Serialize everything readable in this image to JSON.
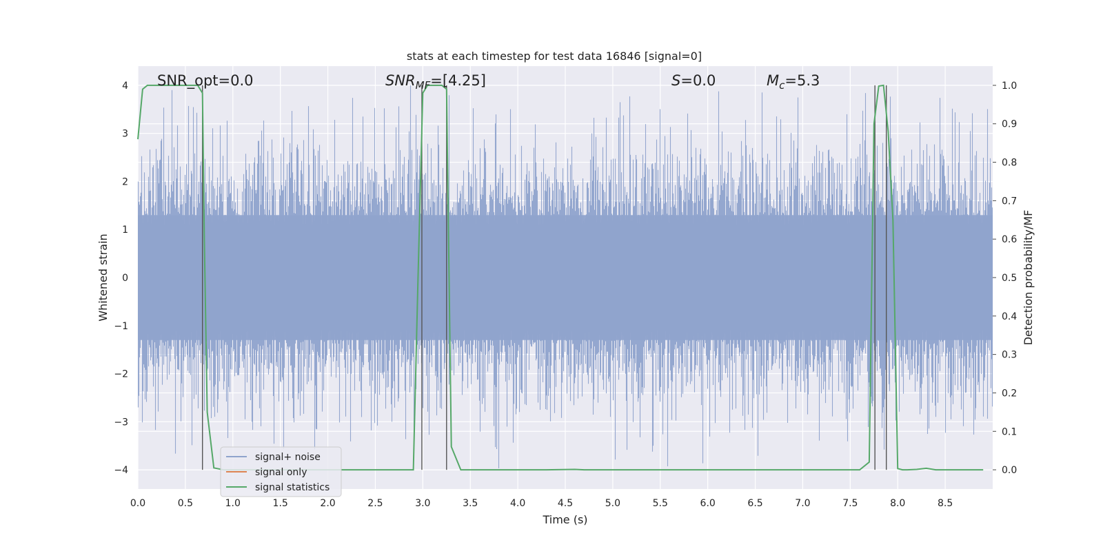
{
  "chart_data": {
    "type": "line",
    "title": "stats at each timestep for test data 16846 [signal=0]",
    "xlabel": "Time (s)",
    "ylabel": "Whitened strain",
    "y2label": "Detection probability/MF",
    "xlim": [
      0,
      9.0
    ],
    "ylim": [
      -4.4,
      4.4
    ],
    "y2lim": [
      -0.05,
      1.05
    ],
    "x_ticks": [
      "0.0",
      "0.5",
      "1.0",
      "1.5",
      "2.0",
      "2.5",
      "3.0",
      "3.5",
      "4.0",
      "4.5",
      "5.0",
      "5.5",
      "6.0",
      "6.5",
      "7.0",
      "7.5",
      "8.0",
      "8.5"
    ],
    "y_ticks": [
      "4",
      "3",
      "2",
      "1",
      "0",
      "−1",
      "−2",
      "−3",
      "−4"
    ],
    "y2_ticks": [
      "1.0",
      "0.9",
      "0.8",
      "0.7",
      "0.6",
      "0.5",
      "0.4",
      "0.3",
      "0.2",
      "0.1",
      "0.0"
    ],
    "grid": true,
    "legend_position": "lower-left",
    "annotations": {
      "snr_opt": "SNR_opt=0.0",
      "snr_mf_prefix": "SNR",
      "snr_mf_sub": "MF",
      "snr_mf_value": "=[4.25]",
      "s_symbol": "S",
      "s_value": "=0.0",
      "mc_symbol": "M",
      "mc_sub": "c",
      "mc_value": "=5.3"
    },
    "series": [
      {
        "name": "signal+ noise",
        "color": "#8fa3cc",
        "style": "noise, approx. ±2.5 typical amplitude, peaks up to ±4"
      },
      {
        "name": "signal only",
        "color": "#dd8452",
        "values": []
      },
      {
        "name": "signal statistics",
        "color": "#55a868",
        "axis": "right",
        "x": [
          0.0,
          0.05,
          0.1,
          0.2,
          0.5,
          0.63,
          0.68,
          0.7,
          0.73,
          0.8,
          0.9,
          2.9,
          2.95,
          3.0,
          3.05,
          3.2,
          3.25,
          3.3,
          3.4,
          4.0,
          4.3,
          4.6,
          4.7,
          5.0,
          7.6,
          7.7,
          7.75,
          7.8,
          7.85,
          7.9,
          7.95,
          8.0,
          8.05,
          8.1,
          8.2,
          8.3,
          8.4,
          8.9
        ],
        "y": [
          0.86,
          0.99,
          1.0,
          1.0,
          1.0,
          1.0,
          0.98,
          0.6,
          0.15,
          0.005,
          0.0,
          0.0,
          0.5,
          0.98,
          1.0,
          1.0,
          0.99,
          0.06,
          0.0,
          0.0,
          0.0,
          0.001,
          0.0,
          0.0,
          0.0,
          0.02,
          0.9,
          0.998,
          1.0,
          0.88,
          0.65,
          0.003,
          0.0,
          0.0,
          0.001,
          0.004,
          0.0,
          0.0
        ]
      }
    ],
    "vertical_markers": [
      0.68,
      2.99,
      3.25,
      7.76,
      7.88
    ]
  }
}
